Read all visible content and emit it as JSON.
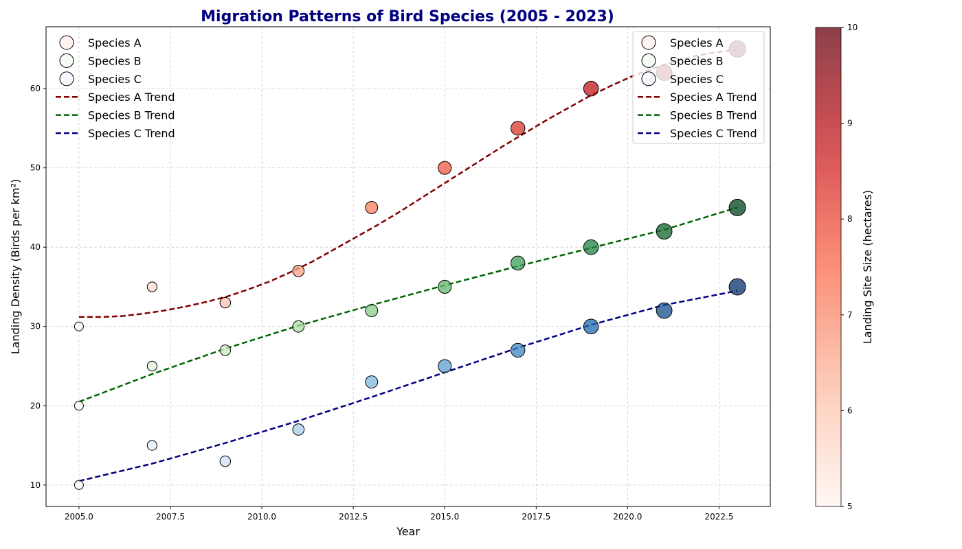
{
  "chart_data": {
    "type": "scatter",
    "title": "Migration Patterns of Bird Species (2005 - 2023)",
    "title_color": "#000080",
    "xlabel": "Year",
    "ylabel": "Landing Density (Birds per km²)",
    "xlim": [
      2004.1,
      2023.9
    ],
    "ylim": [
      7.3,
      67.8
    ],
    "xticks": [
      2005.0,
      2007.5,
      2010.0,
      2012.5,
      2015.0,
      2017.5,
      2020.0,
      2022.5
    ],
    "xtick_labels": [
      "2005.0",
      "2007.5",
      "2010.0",
      "2012.5",
      "2015.0",
      "2017.5",
      "2020.0",
      "2022.5"
    ],
    "yticks": [
      10,
      20,
      30,
      40,
      50,
      60
    ],
    "ytick_labels": [
      "10",
      "20",
      "30",
      "40",
      "50",
      "60"
    ],
    "grid": true,
    "x": [
      2005,
      2007,
      2009,
      2011,
      2013,
      2015,
      2017,
      2019,
      2021,
      2023
    ],
    "site_size": [
      5.0,
      5.56,
      6.11,
      6.67,
      7.22,
      7.78,
      8.33,
      8.89,
      9.44,
      10.0
    ],
    "series": [
      {
        "name": "Species A",
        "values": [
          30,
          35,
          33,
          37,
          45,
          50,
          55,
          60,
          62,
          65
        ],
        "colormap": "Reds",
        "trend_name": "Species A Trend",
        "trend_color": "#800000",
        "trend": [
          31.2,
          31.2,
          31.3,
          31.6,
          32.0,
          32.5,
          33.1,
          33.8,
          34.7,
          35.7,
          36.9,
          38.2,
          39.7,
          41.2,
          42.7,
          44.3,
          46.0,
          47.7,
          49.4,
          51.1,
          52.8,
          54.4,
          56.0,
          57.5,
          59.0,
          60.3,
          61.5,
          62.5,
          63.4,
          64.1,
          64.6,
          64.9
        ]
      },
      {
        "name": "Species B",
        "values": [
          20,
          25,
          27,
          30,
          32,
          35,
          38,
          40,
          42,
          45
        ],
        "colormap": "Greens",
        "trend_name": "Species B Trend",
        "trend_color": "#006400",
        "trend": [
          20.5,
          24.0,
          27.2,
          30.1,
          32.7,
          35.2,
          37.6,
          39.9,
          42.2,
          45.0
        ]
      },
      {
        "name": "Species C",
        "values": [
          10,
          15,
          13,
          17,
          23,
          25,
          27,
          30,
          32,
          35
        ],
        "colormap": "Blues",
        "trend_name": "Species C Trend",
        "trend_color": "#000080",
        "trend": [
          10.5,
          12.7,
          15.3,
          18.1,
          21.1,
          24.2,
          27.3,
          30.2,
          32.7,
          34.5
        ]
      }
    ],
    "legends": [
      "top-left",
      "top-right"
    ],
    "colorbar": {
      "label": "Landing Site Size (hectares)",
      "min": 5,
      "max": 10,
      "ticks": [
        5,
        6,
        7,
        8,
        9,
        10
      ],
      "tick_labels": [
        "5",
        "6",
        "7",
        "8",
        "9",
        "10"
      ],
      "colormap": "Reds"
    }
  }
}
